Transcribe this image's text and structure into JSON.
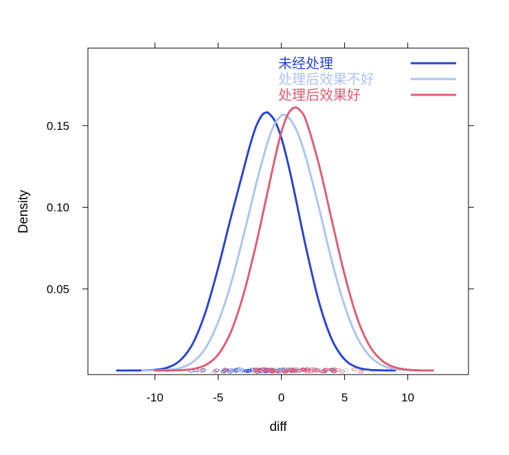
{
  "chart_data": {
    "type": "line",
    "xlabel": "diff",
    "ylabel": "Density",
    "xlim": [
      -15.3,
      14.8
    ],
    "ylim": [
      -0.0025,
      0.1975
    ],
    "x_ticks": [
      -10,
      -5,
      0,
      5,
      10
    ],
    "x_tick_labels": [
      "-10",
      "-5",
      "0",
      "5",
      "10"
    ],
    "y_ticks": [
      0.05,
      0.1,
      0.15
    ],
    "y_tick_labels": [
      "0.05",
      "0.10",
      "0.15"
    ],
    "grid": false,
    "legend_position": "top-right",
    "rug": true,
    "series": [
      {
        "name": "未经处理",
        "color": "#2643d6",
        "x": [
          -13.0,
          -12.0,
          -11.0,
          -10.0,
          -9.0,
          -8.0,
          -7.0,
          -6.0,
          -5.0,
          -4.0,
          -3.0,
          -2.5,
          -2.0,
          -1.5,
          -1.2,
          -1.0,
          -0.5,
          0.0,
          0.5,
          1.0,
          2.0,
          3.0,
          4.0,
          5.0,
          6.0,
          7.0,
          8.0,
          9.0
        ],
        "y": [
          0.0,
          0.0,
          0.0001,
          0.0004,
          0.0018,
          0.0062,
          0.0166,
          0.0358,
          0.0628,
          0.0935,
          0.1228,
          0.1374,
          0.1495,
          0.1567,
          0.158,
          0.1576,
          0.1527,
          0.1425,
          0.1278,
          0.1104,
          0.0735,
          0.0413,
          0.0189,
          0.0068,
          0.0019,
          0.0004,
          0.0001,
          0.0
        ]
      },
      {
        "name": "处理后效果不好",
        "color": "#aec4f0",
        "x": [
          -11.0,
          -10.0,
          -9.0,
          -8.0,
          -7.0,
          -6.0,
          -5.0,
          -4.0,
          -3.0,
          -2.0,
          -1.5,
          -1.0,
          -0.5,
          0.0,
          0.2,
          0.5,
          1.0,
          1.5,
          2.0,
          3.0,
          4.0,
          5.0,
          6.0,
          7.0,
          8.0,
          9.0,
          10.0,
          11.0
        ],
        "y": [
          0.0,
          0.0001,
          0.0004,
          0.0016,
          0.0052,
          0.0137,
          0.0297,
          0.0529,
          0.0824,
          0.1141,
          0.1286,
          0.142,
          0.1515,
          0.1562,
          0.1566,
          0.1556,
          0.1503,
          0.1413,
          0.1288,
          0.0989,
          0.0668,
          0.0398,
          0.0202,
          0.0087,
          0.0031,
          0.0009,
          0.0002,
          0.0
        ]
      },
      {
        "name": "处理后效果好",
        "color": "#e05c72",
        "x": [
          -10.0,
          -9.0,
          -8.0,
          -7.0,
          -6.0,
          -5.0,
          -4.0,
          -3.0,
          -2.0,
          -1.0,
          -0.5,
          0.0,
          0.5,
          1.0,
          1.5,
          2.0,
          3.0,
          4.0,
          5.0,
          6.0,
          7.0,
          8.0,
          9.0,
          10.0,
          11.0,
          12.0
        ],
        "y": [
          0.0,
          0.0,
          0.0002,
          0.0009,
          0.0033,
          0.0098,
          0.0235,
          0.0465,
          0.0773,
          0.1126,
          0.1302,
          0.1461,
          0.1567,
          0.161,
          0.1592,
          0.152,
          0.1253,
          0.0917,
          0.0588,
          0.0321,
          0.0148,
          0.0058,
          0.0019,
          0.0005,
          0.0001,
          0.0
        ]
      }
    ]
  }
}
